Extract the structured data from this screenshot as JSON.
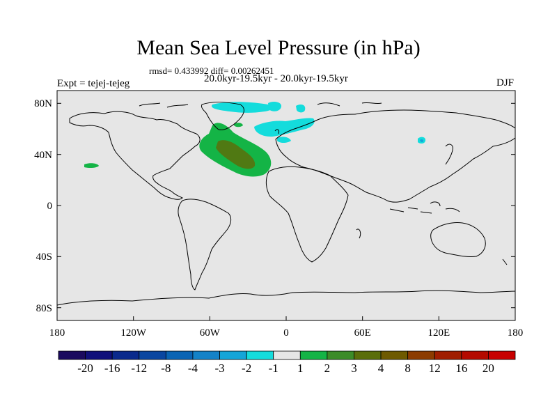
{
  "title": "Mean Sea Level Pressure (in hPa)",
  "stats": "rmsd= 0.433992 diff= 0.00262451",
  "period": "20.0kyr-19.5kyr - 20.0kyr-19.5kyr",
  "experiment": "Expt = tejej-tejeg",
  "season": "DJF",
  "map": {
    "projection": "cylindrical equidistant",
    "lon_range": [
      -180,
      180
    ],
    "lat_range": [
      -90,
      90
    ],
    "lon_ticks": [
      {
        "value": -180,
        "label": "180"
      },
      {
        "value": -120,
        "label": "120W"
      },
      {
        "value": -60,
        "label": "60W"
      },
      {
        "value": 0,
        "label": "0"
      },
      {
        "value": 60,
        "label": "60E"
      },
      {
        "value": 120,
        "label": "120E"
      },
      {
        "value": 180,
        "label": "180"
      }
    ],
    "lat_ticks": [
      {
        "value": 80,
        "label": "80N"
      },
      {
        "value": 40,
        "label": "40N"
      },
      {
        "value": 0,
        "label": "0"
      },
      {
        "value": -40,
        "label": "40S"
      },
      {
        "value": -80,
        "label": "80S"
      }
    ],
    "background_color": "#e6e6e6",
    "coastline_color": "#000000"
  },
  "colorbar": {
    "labels": [
      "-20",
      "-16",
      "-12",
      "-8",
      "-4",
      "-3",
      "-2",
      "-1",
      "1",
      "2",
      "3",
      "4",
      "8",
      "12",
      "16",
      "20"
    ],
    "colors": [
      "#1a0a5e",
      "#10107a",
      "#0a2a8c",
      "#0a46a0",
      "#0a64b4",
      "#1482c8",
      "#14a5d8",
      "#14dcdc",
      "#e6e6e6",
      "#14b446",
      "#3c8c28",
      "#5a6e0a",
      "#6e5a00",
      "#8c3c00",
      "#a01e00",
      "#b40a00",
      "#c80000"
    ]
  },
  "anomalies": [
    {
      "name": "north-atlantic-positive",
      "level": "2",
      "color": "#14b446"
    },
    {
      "name": "north-atlantic-core",
      "level": "3",
      "color": "#3c8c28"
    },
    {
      "name": "arctic-negative",
      "level": "-1",
      "color": "#14dcdc"
    },
    {
      "name": "north-pacific-positive",
      "level": "2",
      "color": "#14b446"
    },
    {
      "name": "asia-negative",
      "level": "-2",
      "color": "#14a5d8"
    }
  ]
}
